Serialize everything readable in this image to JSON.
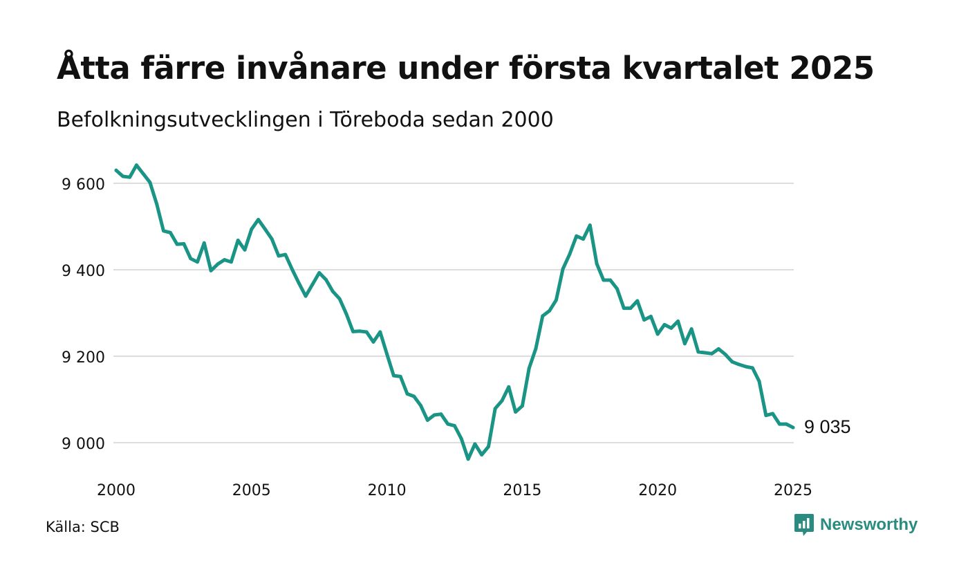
{
  "title": "Åtta färre invånare under första kvartalet 2025",
  "subtitle": "Befolkningsutvecklingen i Töreboda sedan 2000",
  "source": "Källa: SCB",
  "brand": {
    "name": "Newsworthy",
    "icon": "newsworthy-chart-bubble-icon"
  },
  "colors": {
    "line": "#1a9485",
    "grid": "#dddddd",
    "brand": "#2a8c80",
    "text": "#111111"
  },
  "chart_data": {
    "type": "line",
    "x_ticks": [
      "2000",
      "2005",
      "2010",
      "2015",
      "2020",
      "2025"
    ],
    "y_ticks": [
      {
        "value": 9000,
        "label": "9 000"
      },
      {
        "value": 9200,
        "label": "9 200"
      },
      {
        "value": 9400,
        "label": "9 400"
      },
      {
        "value": 9600,
        "label": "9 600"
      }
    ],
    "xlim": [
      2000,
      2025
    ],
    "grid": "horizontal",
    "end_label": "9 035",
    "series": [
      {
        "color": "#1a9485",
        "values": [
          9630,
          9616,
          9614,
          9642,
          9622,
          9602,
          9552,
          9490,
          9486,
          9459,
          9460,
          9426,
          9418,
          9462,
          9398,
          9413,
          9423,
          9418,
          9468,
          9446,
          9494,
          9516,
          9494,
          9471,
          9432,
          9435,
          9401,
          9369,
          9339,
          9366,
          9393,
          9377,
          9350,
          9333,
          9298,
          9257,
          9258,
          9256,
          9233,
          9256,
          9205,
          9155,
          9153,
          9113,
          9107,
          9086,
          9052,
          9064,
          9066,
          9043,
          9039,
          9009,
          8962,
          8997,
          8972,
          8991,
          9079,
          9097,
          9129,
          9071,
          9085,
          9172,
          9218,
          9293,
          9305,
          9330,
          9402,
          9436,
          9478,
          9471,
          9503,
          9414,
          9376,
          9376,
          9356,
          9311,
          9311,
          9328,
          9284,
          9292,
          9251,
          9273,
          9265,
          9281,
          9229,
          9263,
          9210,
          9208,
          9206,
          9217,
          9204,
          9187,
          9181,
          9176,
          9173,
          9142,
          9063,
          9067,
          9043,
          9043,
          9035
        ]
      }
    ]
  }
}
